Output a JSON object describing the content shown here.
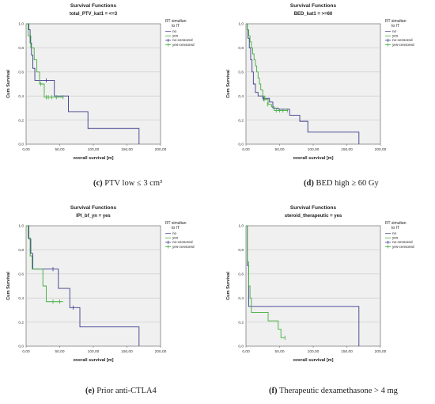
{
  "colors": {
    "no": "#3b3c8c",
    "yes": "#3fae3c",
    "plot_bg": "#f0f0f0",
    "grid": "#c8c8c8"
  },
  "chart_data": [
    {
      "id": "c",
      "type": "line",
      "title": "Survival Functions",
      "subtitle": "total_PTV_kat1 = <=3",
      "xlabel": "overall survival [m]",
      "ylabel": "Cum Survival",
      "xlim": [
        0,
        200
      ],
      "ylim": [
        0,
        1.0
      ],
      "xticks": [
        "0,00",
        "50,00",
        "100,00",
        "150,00",
        "200,00"
      ],
      "yticks": [
        "0,0",
        "0,2",
        "0,4",
        "0,6",
        "0,8",
        "1,0"
      ],
      "legend_title": "RT simultan to IT",
      "legend": [
        "no",
        "yes",
        "no-censored",
        "yes-censored"
      ],
      "legend_placement": "right",
      "grid": true,
      "caption_label": "(c)",
      "caption_text": "PTV low ≤ 3 cm³",
      "series": [
        {
          "name": "no",
          "points": [
            [
              0,
              1.0
            ],
            [
              4,
              0.95
            ],
            [
              6,
              0.84
            ],
            [
              8,
              0.74
            ],
            [
              10,
              0.63
            ],
            [
              13,
              0.53
            ],
            [
              40,
              0.53
            ],
            [
              42,
              0.4
            ],
            [
              60,
              0.4
            ],
            [
              63,
              0.27
            ],
            [
              90,
              0.27
            ],
            [
              92,
              0.13
            ],
            [
              168,
              0.13
            ],
            [
              168,
              0.0
            ]
          ],
          "censored": [
            [
              30,
              0.53
            ]
          ]
        },
        {
          "name": "yes",
          "points": [
            [
              0,
              1.0
            ],
            [
              3,
              0.9
            ],
            [
              7,
              0.8
            ],
            [
              12,
              0.7
            ],
            [
              16,
              0.6
            ],
            [
              20,
              0.5
            ],
            [
              27,
              0.39
            ],
            [
              55,
              0.39
            ]
          ],
          "censored": [
            [
              22,
              0.5
            ],
            [
              30,
              0.39
            ],
            [
              33,
              0.39
            ],
            [
              38,
              0.39
            ],
            [
              45,
              0.39
            ],
            [
              55,
              0.39
            ]
          ]
        }
      ]
    },
    {
      "id": "d",
      "type": "line",
      "title": "Survival Functions",
      "subtitle": "BED_kat1 = >=60",
      "xlabel": "overall survival [m]",
      "ylabel": "Cum Survival",
      "xlim": [
        0,
        200
      ],
      "ylim": [
        0,
        1.0
      ],
      "xticks": [
        "0,00",
        "50,00",
        "100,00",
        "150,00",
        "200,00"
      ],
      "yticks": [
        "0,0",
        "0,2",
        "0,4",
        "0,6",
        "0,8",
        "1,0"
      ],
      "legend_title": "RT simultan to IT",
      "legend": [
        "no",
        "yes",
        "no-censored",
        "yes-censored"
      ],
      "legend_placement": "right",
      "grid": true,
      "caption_label": "(d)",
      "caption_text": "BED high ≥ 60 Gy",
      "series": [
        {
          "name": "no",
          "points": [
            [
              0,
              1.0
            ],
            [
              2,
              0.95
            ],
            [
              3,
              0.88
            ],
            [
              5,
              0.8
            ],
            [
              7,
              0.7
            ],
            [
              9,
              0.6
            ],
            [
              11,
              0.5
            ],
            [
              14,
              0.43
            ],
            [
              18,
              0.4
            ],
            [
              25,
              0.38
            ],
            [
              35,
              0.35
            ],
            [
              40,
              0.3
            ],
            [
              48,
              0.29
            ],
            [
              63,
              0.29
            ],
            [
              65,
              0.24
            ],
            [
              78,
              0.24
            ],
            [
              80,
              0.19
            ],
            [
              90,
              0.19
            ],
            [
              92,
              0.1
            ],
            [
              168,
              0.1
            ],
            [
              168,
              0.0
            ]
          ],
          "censored": [
            [
              26,
              0.38
            ]
          ]
        },
        {
          "name": "yes",
          "points": [
            [
              0,
              1.0
            ],
            [
              2,
              0.95
            ],
            [
              4,
              0.9
            ],
            [
              6,
              0.85
            ],
            [
              8,
              0.8
            ],
            [
              10,
              0.75
            ],
            [
              12,
              0.7
            ],
            [
              14,
              0.65
            ],
            [
              16,
              0.6
            ],
            [
              18,
              0.55
            ],
            [
              20,
              0.5
            ],
            [
              22,
              0.45
            ],
            [
              25,
              0.4
            ],
            [
              28,
              0.37
            ],
            [
              33,
              0.33
            ],
            [
              38,
              0.31
            ],
            [
              42,
              0.28
            ],
            [
              62,
              0.28
            ]
          ],
          "censored": [
            [
              27,
              0.37
            ],
            [
              32,
              0.33
            ],
            [
              45,
              0.28
            ],
            [
              50,
              0.28
            ],
            [
              55,
              0.28
            ],
            [
              62,
              0.28
            ]
          ]
        }
      ]
    },
    {
      "id": "e",
      "type": "line",
      "title": "Survival Functions",
      "subtitle": "IPI_bf_yn = yes",
      "xlabel": "overall survival [m]",
      "ylabel": "Cum Survival",
      "xlim": [
        0,
        200
      ],
      "ylim": [
        0,
        1.0
      ],
      "xticks": [
        "0,00",
        "50,00",
        "100,00",
        "150,00",
        "200,00"
      ],
      "yticks": [
        "0,0",
        "0,2",
        "0,4",
        "0,6",
        "0,8",
        "1,0"
      ],
      "legend_title": "RT simultan to IT",
      "legend": [
        "no",
        "yes",
        "no-censored",
        "yes-censored"
      ],
      "legend_placement": "right",
      "grid": true,
      "caption_label": "(e)",
      "caption_text": "Prior anti-CTLA4",
      "series": [
        {
          "name": "no",
          "points": [
            [
              0,
              1.0
            ],
            [
              4,
              0.89
            ],
            [
              7,
              0.77
            ],
            [
              10,
              0.64
            ],
            [
              45,
              0.64
            ],
            [
              48,
              0.48
            ],
            [
              62,
              0.48
            ],
            [
              65,
              0.32
            ],
            [
              78,
              0.32
            ],
            [
              80,
              0.16
            ],
            [
              168,
              0.16
            ],
            [
              168,
              0.0
            ]
          ],
          "censored": [
            [
              40,
              0.64
            ],
            [
              70,
              0.32
            ]
          ]
        },
        {
          "name": "yes",
          "points": [
            [
              0,
              1.0
            ],
            [
              3,
              0.9
            ],
            [
              6,
              0.75
            ],
            [
              9,
              0.64
            ],
            [
              22,
              0.64
            ],
            [
              25,
              0.5
            ],
            [
              30,
              0.37
            ],
            [
              55,
              0.37
            ]
          ],
          "censored": [
            [
              40,
              0.37
            ],
            [
              50,
              0.37
            ]
          ]
        }
      ]
    },
    {
      "id": "f",
      "type": "line",
      "title": "Survival Functions",
      "subtitle": "steroid_therapeutic = yes",
      "xlabel": "overall survival [m]",
      "ylabel": "Cum Survival",
      "xlim": [
        0,
        200
      ],
      "ylim": [
        0,
        1.0
      ],
      "xticks": [
        "0,00",
        "50,00",
        "100,00",
        "150,00",
        "200,00"
      ],
      "yticks": [
        "0,0",
        "0,2",
        "0,4",
        "0,6",
        "0,8",
        "1,0"
      ],
      "legend_title": "RT simultan to IT",
      "legend": [
        "no",
        "yes",
        "no-censored",
        "yes-censored"
      ],
      "legend_placement": "right",
      "grid": true,
      "caption_label": "(f)",
      "caption_text": "Therapeutic dexamethasone > 4 mg",
      "series": [
        {
          "name": "no",
          "points": [
            [
              0,
              1.0
            ],
            [
              2,
              0.67
            ],
            [
              4,
              0.33
            ],
            [
              168,
              0.33
            ],
            [
              168,
              0.0
            ]
          ],
          "censored": []
        },
        {
          "name": "yes",
          "points": [
            [
              0,
              1.0
            ],
            [
              2,
              0.7
            ],
            [
              4,
              0.5
            ],
            [
              6,
              0.4
            ],
            [
              8,
              0.28
            ],
            [
              30,
              0.28
            ],
            [
              33,
              0.21
            ],
            [
              45,
              0.21
            ],
            [
              48,
              0.14
            ],
            [
              52,
              0.07
            ],
            [
              58,
              0.07
            ]
          ],
          "censored": [
            [
              58,
              0.07
            ]
          ]
        }
      ]
    }
  ]
}
